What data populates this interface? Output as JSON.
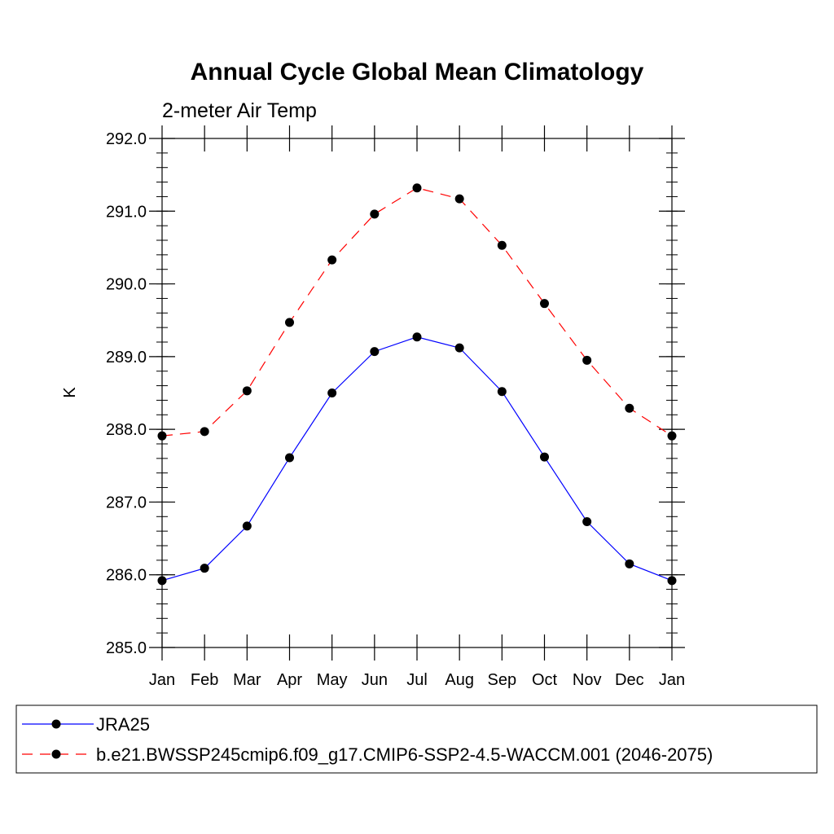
{
  "chart_data": {
    "type": "line",
    "title": "Annual Cycle Global Mean Climatology",
    "subtitle": "2-meter Air Temp",
    "xlabel": "",
    "ylabel": "K",
    "categories": [
      "Jan",
      "Feb",
      "Mar",
      "Apr",
      "May",
      "Jun",
      "Jul",
      "Aug",
      "Sep",
      "Oct",
      "Nov",
      "Dec",
      "Jan"
    ],
    "yticks": [
      "285.0",
      "286.0",
      "287.0",
      "288.0",
      "289.0",
      "290.0",
      "291.0",
      "292.0"
    ],
    "ylim": [
      285.0,
      292.0
    ],
    "grid": false,
    "legend_position": "bottom",
    "series": [
      {
        "name": "JRA25",
        "color": "#0000ff",
        "dash": "solid",
        "marker": "filled-circle",
        "values": [
          285.92,
          286.09,
          286.67,
          287.61,
          288.5,
          289.07,
          289.27,
          289.12,
          288.52,
          287.62,
          286.73,
          286.15,
          285.92
        ]
      },
      {
        "name": "b.e21.BWSSP245cmip6.f09_g17.CMIP6-SSP2-4.5-WACCM.001 (2046-2075)",
        "color": "#ff0000",
        "dash": "dashed",
        "marker": "filled-circle",
        "values": [
          287.91,
          287.97,
          288.53,
          289.47,
          290.33,
          290.96,
          291.32,
          291.17,
          290.53,
          289.73,
          288.95,
          288.29,
          287.91
        ]
      }
    ]
  }
}
